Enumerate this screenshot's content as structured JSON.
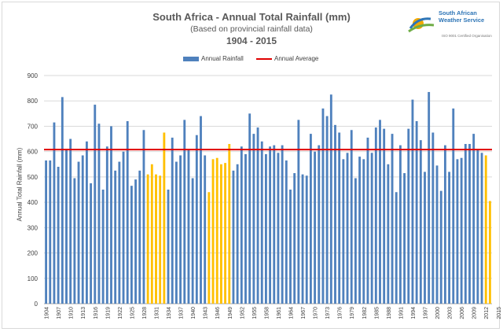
{
  "header": {
    "title": "South Africa - Annual Total Rainfall (mm)",
    "subtitle": "(Based on provincial rainfall data)",
    "period": "1904 - 2015"
  },
  "logo": {
    "line1": "South African",
    "line2": "Weather Service",
    "tagline": "ISO 9001 Certified Organisation"
  },
  "colors": {
    "bar": "#4f81bd",
    "highlight": "#ffc000",
    "average": "#e00000",
    "latest": "#c00000",
    "grid": "#d9d9d9"
  },
  "chart_data": {
    "type": "bar",
    "ylabel": "Annual Total Rainfall (mm)",
    "ylim": [
      0,
      900
    ],
    "yticks": [
      0,
      100,
      200,
      300,
      400,
      500,
      600,
      700,
      800,
      900
    ],
    "grid": true,
    "legend_position": "top-center",
    "legend": {
      "bars": "Annual Rainfall",
      "line": "Annual Average"
    },
    "average": 608,
    "xtick_labels": [
      "1904",
      "1907",
      "1910",
      "1913",
      "1916",
      "1919",
      "1922",
      "1925",
      "1928",
      "1931",
      "1934",
      "1937",
      "1940",
      "1943",
      "1946",
      "1949",
      "1952",
      "1955",
      "1958",
      "1961",
      "1964",
      "1967",
      "1970",
      "1973",
      "1976",
      "1979",
      "1982",
      "1985",
      "1988",
      "1991",
      "1994",
      "1997",
      "2000",
      "2003",
      "2006",
      "2009",
      "2012",
      "2015"
    ],
    "start_year": 1904,
    "values": [
      565,
      565,
      715,
      540,
      815,
      610,
      650,
      495,
      560,
      585,
      640,
      475,
      785,
      710,
      450,
      620,
      700,
      525,
      560,
      600,
      720,
      465,
      490,
      525,
      685,
      510,
      550,
      510,
      505,
      675,
      450,
      655,
      560,
      585,
      725,
      605,
      495,
      665,
      740,
      585,
      440,
      570,
      575,
      550,
      555,
      630,
      525,
      550,
      620,
      590,
      750,
      670,
      695,
      640,
      590,
      620,
      625,
      595,
      625,
      565,
      450,
      515,
      725,
      510,
      505,
      670,
      600,
      625,
      770,
      740,
      825,
      705,
      675,
      570,
      595,
      685,
      495,
      580,
      570,
      655,
      595,
      695,
      725,
      690,
      550,
      670,
      440,
      625,
      515,
      690,
      805,
      720,
      645,
      520,
      835,
      675,
      545,
      445,
      625,
      520,
      770,
      570,
      575,
      630,
      630,
      670,
      605,
      595,
      585,
      405
    ],
    "highlighted_ranges": [
      [
        1929,
        1933
      ],
      [
        1944,
        1949
      ],
      [
        2012,
        2014
      ]
    ],
    "latest_year": 2015
  }
}
